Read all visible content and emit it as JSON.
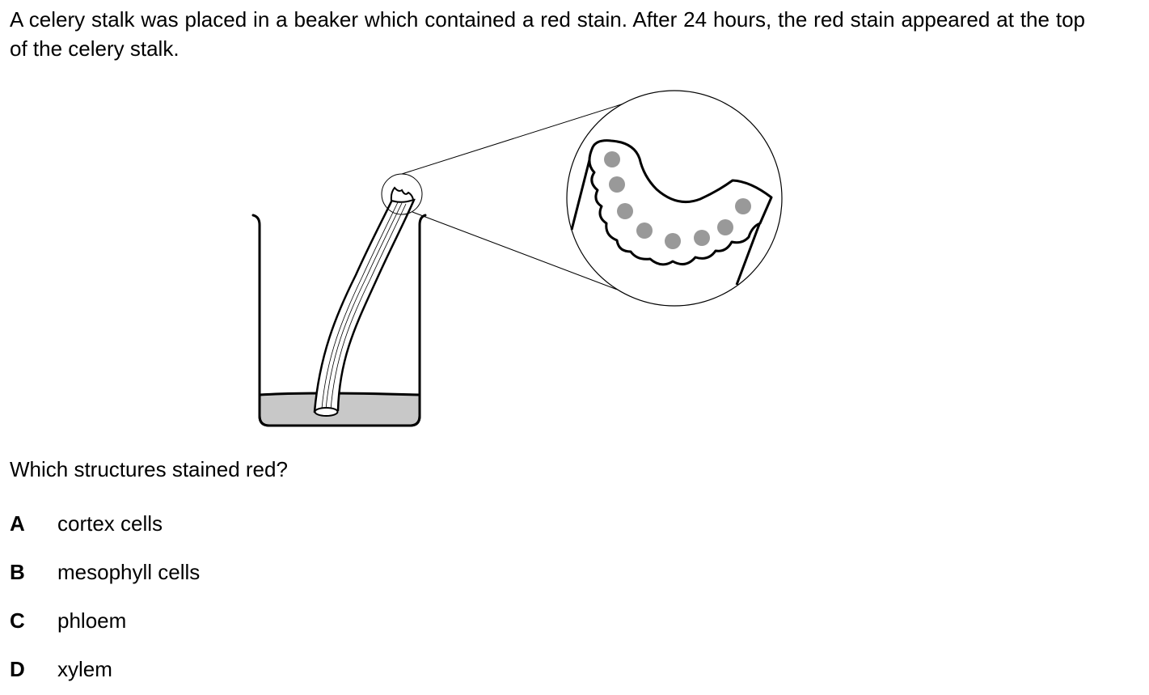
{
  "question": {
    "stem": "A celery stalk was placed in a beaker which contained a red stain. After 24 hours, the red stain appeared at the top of the celery stalk.",
    "prompt": "Which structures stained red?",
    "options": [
      {
        "letter": "A",
        "text": "cortex cells"
      },
      {
        "letter": "B",
        "text": "mesophyll cells"
      },
      {
        "letter": "C",
        "text": "phloem"
      },
      {
        "letter": "D",
        "text": "xylem"
      }
    ]
  },
  "figure": {
    "stain_fill": "#c8c8c8",
    "vessel_fill": "#999999",
    "stained_vessel_count": 8
  }
}
